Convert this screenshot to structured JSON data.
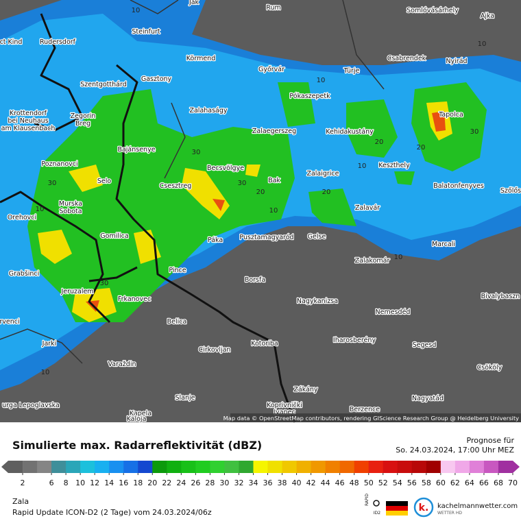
{
  "map": {
    "places": [
      "Rum",
      "Somlóvásárhely",
      "Ajka",
      "Steinfurt",
      "Rudersdorf",
      "Körmend",
      "Csabrendek",
      "Nyirád",
      "Győrvár",
      "Türje",
      "Gasztony",
      "Szentgotthárd",
      "Pókaszepetk",
      "Zalahaságy",
      "Tapolca",
      "Zalaegerszeg",
      "Kehidakustány",
      "Bajánsenye",
      "Keszthely",
      "Poznanovci",
      "Becsvölgye",
      "Zalaigrice",
      "Selo",
      "Csesztreg",
      "Bak",
      "Balatonfenyves",
      "Murska",
      "Sobota",
      "Zalavár",
      "Gomilica",
      "Páka",
      "Pusztamagyaród",
      "Gelse",
      "Marcali",
      "Zalakomár",
      "Pince",
      "Grabšinci",
      "Borsfa",
      "Jeruzalem",
      "Frkanovec",
      "Nagykanizsa",
      "Nemesdéd",
      "Belica",
      "Iharosberény",
      "Kotoriba",
      "Segesd",
      "Jarki",
      "Cirkovljan",
      "Varaždin",
      "Csököly",
      "Zákány",
      "Slanje",
      "Nagyatád",
      "Koprivnički",
      "Ivanec",
      "Berzence",
      "Kapela",
      "Orehovci",
      "Zegorin",
      "Breg",
      "Krottendorf",
      "bei Neuhaus",
      "am Klausenbach",
      "Bivalybaszn",
      "Szőlős",
      "Ják",
      "Kaloja",
      "urga Lepoglavska",
      "rvenci",
      "ct Kind"
    ],
    "contours": [
      "10",
      "10",
      "10",
      "20",
      "20",
      "20",
      "30",
      "30",
      "30",
      "30",
      "10",
      "10",
      "20",
      "10",
      "10",
      "10",
      "30"
    ],
    "attribution": "Map data © OpenStreetMap contributors, rendering GIScience Research Group @ Heidelberg University"
  },
  "footer": {
    "title": "Simulierte max. Radarreflektivität (dBZ)",
    "forecast_label": "Prognose für",
    "forecast_time": "So. 24.03.2024, 17:00 Uhr MEZ",
    "region": "Zala",
    "model": "Rapid Update ICON-D2 (2 Tage) vom 24.03.2024/06z",
    "brand": "kachelmannwetter.com",
    "brand_sub": "WETTER HD",
    "badge_top": "RAPID",
    "badge_bottom": "ID2"
  },
  "legend": {
    "ticks": [
      2,
      6,
      8,
      10,
      12,
      14,
      16,
      18,
      20,
      22,
      24,
      26,
      28,
      30,
      32,
      34,
      36,
      38,
      40,
      42,
      44,
      46,
      48,
      50,
      52,
      54,
      56,
      58,
      60,
      62,
      64,
      66,
      68,
      70
    ],
    "colors": [
      "#5f5f5f",
      "#727272",
      "#858585",
      "#3f8f9a",
      "#2aa6b8",
      "#1cc0dc",
      "#18b0f0",
      "#1890f0",
      "#1670e6",
      "#1448d0",
      "#0c9a0c",
      "#10b010",
      "#18c018",
      "#20cc20",
      "#30d030",
      "#40c040",
      "#30a830",
      "#f5f500",
      "#f0e000",
      "#f0c800",
      "#f0b000",
      "#f09800",
      "#f08000",
      "#f06800",
      "#f04000",
      "#e82010",
      "#d81010",
      "#c80c0c",
      "#b80808",
      "#a00000",
      "#f8c8f0",
      "#f0a8e8",
      "#e080d8",
      "#c858c0",
      "#a030a0"
    ]
  }
}
